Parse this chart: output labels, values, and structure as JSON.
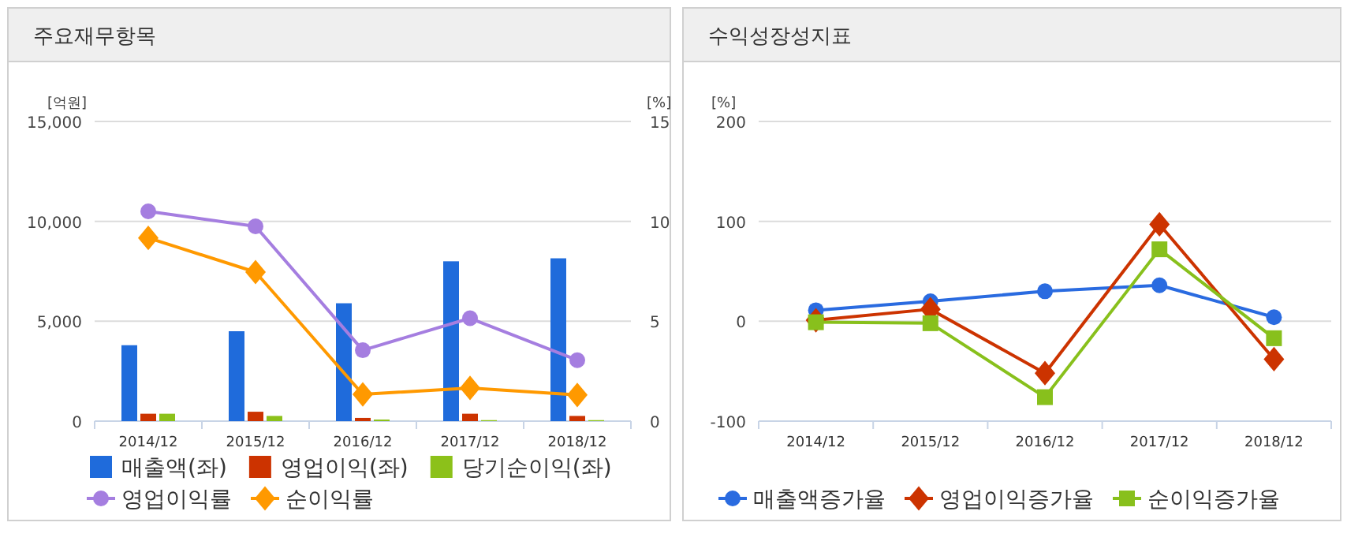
{
  "chart_data": [
    {
      "type": "bar",
      "title": "주요재무항목",
      "ylabel": "[억원]",
      "y2label": "[%]",
      "categories": [
        "2014/12",
        "2015/12",
        "2016/12",
        "2017/12",
        "2018/12"
      ],
      "series": [
        {
          "name": "매출액(좌)",
          "color": "#1f6bdb",
          "values": [
            3800,
            4500,
            5900,
            8000,
            8150
          ]
        },
        {
          "name": "영업이익(좌)",
          "color": "#cc3300",
          "values": [
            370,
            470,
            160,
            370,
            260
          ]
        },
        {
          "name": "당기순이익(좌)",
          "color": "#8cc11a",
          "values": [
            370,
            260,
            80,
            50,
            50
          ]
        },
        {
          "name": "영업이익률",
          "type": "line",
          "axis": "y2",
          "marker": "circle",
          "color": "#a57ee0",
          "values": [
            10.5,
            9.75,
            3.55,
            5.15,
            3.05
          ]
        },
        {
          "name": "순이익률",
          "type": "line",
          "axis": "y2",
          "marker": "diamond",
          "color": "#ff9900",
          "values": [
            9.17,
            7.46,
            1.34,
            1.66,
            1.31
          ]
        }
      ],
      "ylim": [
        0,
        15000
      ],
      "yticks": [
        {
          "value": 0,
          "label": "0"
        },
        {
          "value": 5000,
          "label": "5,000"
        },
        {
          "value": 10000,
          "label": "10,000"
        },
        {
          "value": 15000,
          "label": "15,000"
        }
      ],
      "y2lim": [
        0,
        15
      ],
      "y2ticks": [
        0,
        5,
        10,
        15
      ],
      "grid": "y",
      "legend": "bottom"
    },
    {
      "type": "line",
      "title": "수익성장성지표",
      "ylabel": "[%]",
      "categories": [
        "2014/12",
        "2015/12",
        "2016/12",
        "2017/12",
        "2018/12"
      ],
      "series": [
        {
          "name": "매출액증가율",
          "marker": "circle",
          "color": "#2a6be0",
          "values": [
            11,
            20,
            30,
            36,
            4
          ]
        },
        {
          "name": "영업이익증가율",
          "marker": "diamond",
          "color": "#cc3300",
          "values": [
            1,
            12,
            -52,
            97,
            -38
          ]
        },
        {
          "name": "순이익증가율",
          "marker": "square",
          "color": "#88c01c",
          "values": [
            -1,
            -2,
            -76,
            72,
            -17
          ]
        }
      ],
      "ylim": [
        -100,
        200
      ],
      "yticks": [
        -100,
        0,
        100,
        200
      ],
      "grid": "y",
      "legend": "bottom"
    }
  ]
}
